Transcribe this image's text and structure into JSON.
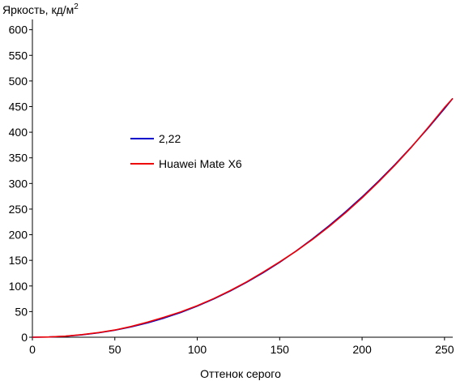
{
  "chart_data": {
    "type": "line",
    "ylabel_main": "Яркость, кд/м",
    "ylabel_sup": "2",
    "xlabel": "Оттенок серого",
    "xlim": [
      0,
      255
    ],
    "ylim": [
      0,
      620
    ],
    "xticks": [
      0,
      50,
      100,
      150,
      200,
      250
    ],
    "yticks": [
      0,
      50,
      100,
      150,
      200,
      250,
      300,
      350,
      400,
      450,
      500,
      550,
      600
    ],
    "legend_position": "middle-left",
    "series": [
      {
        "name": "2,22",
        "color": "#0000cc",
        "x": [
          0,
          10,
          20,
          30,
          40,
          50,
          60,
          70,
          80,
          90,
          100,
          110,
          120,
          130,
          140,
          150,
          160,
          170,
          180,
          190,
          200,
          210,
          220,
          230,
          240,
          250,
          255
        ],
        "y": [
          0,
          0.4,
          1.9,
          4.6,
          8.5,
          13.7,
          20.2,
          28.1,
          37.5,
          48.3,
          60.7,
          74.6,
          90.1,
          107.2,
          125.9,
          146.2,
          168.3,
          192.1,
          217.6,
          244.8,
          273.8,
          304.6,
          337.2,
          371.6,
          407.9,
          446.0,
          466.0
        ]
      },
      {
        "name": "Huawei Mate X6",
        "color": "#ee0000",
        "x": [
          0,
          10,
          20,
          30,
          40,
          50,
          60,
          70,
          80,
          90,
          100,
          110,
          120,
          130,
          140,
          150,
          160,
          170,
          180,
          190,
          200,
          210,
          220,
          230,
          240,
          250,
          255
        ],
        "y": [
          0,
          0.5,
          2.1,
          5.0,
          9.0,
          14.0,
          21.0,
          29.5,
          39.0,
          49.5,
          61.5,
          75.5,
          91.0,
          108.0,
          127.0,
          147.0,
          168.0,
          191.0,
          216.0,
          243.0,
          272.0,
          303.0,
          336.0,
          371.0,
          409.0,
          448.0,
          466.0
        ]
      }
    ]
  }
}
